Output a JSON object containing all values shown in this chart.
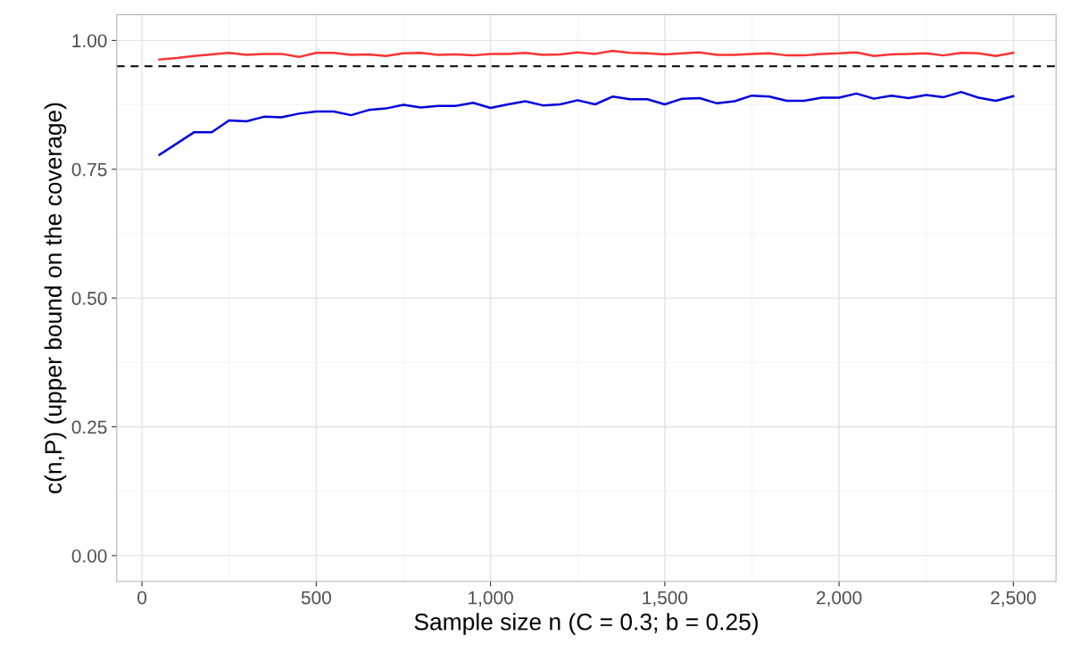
{
  "chart_data": {
    "type": "line",
    "xlabel": "Sample size n (C = 0.3; b = 0.25)",
    "ylabel": "c(n,P) (upper bound on the coverage)",
    "x": [
      50,
      100,
      150,
      200,
      250,
      300,
      350,
      400,
      450,
      500,
      550,
      600,
      650,
      700,
      750,
      800,
      850,
      900,
      950,
      1000,
      1050,
      1100,
      1150,
      1200,
      1250,
      1300,
      1350,
      1400,
      1450,
      1500,
      1550,
      1600,
      1650,
      1700,
      1750,
      1800,
      1850,
      1900,
      1950,
      2000,
      2050,
      2100,
      2150,
      2200,
      2250,
      2300,
      2350,
      2400,
      2450,
      2500
    ],
    "series": [
      {
        "color": "#ff3333",
        "values": [
          0.963,
          0.966,
          0.97,
          0.973,
          0.976,
          0.972,
          0.974,
          0.974,
          0.968,
          0.976,
          0.976,
          0.972,
          0.973,
          0.97,
          0.975,
          0.976,
          0.972,
          0.973,
          0.971,
          0.974,
          0.974,
          0.976,
          0.972,
          0.973,
          0.977,
          0.974,
          0.98,
          0.976,
          0.975,
          0.973,
          0.975,
          0.977,
          0.972,
          0.972,
          0.974,
          0.975,
          0.971,
          0.971,
          0.974,
          0.975,
          0.977,
          0.97,
          0.973,
          0.974,
          0.975,
          0.971,
          0.976,
          0.975,
          0.97,
          0.976
        ]
      },
      {
        "color": "#0000dd",
        "values": [
          0.778,
          0.8,
          0.822,
          0.822,
          0.845,
          0.843,
          0.852,
          0.851,
          0.858,
          0.862,
          0.862,
          0.855,
          0.865,
          0.868,
          0.875,
          0.87,
          0.873,
          0.873,
          0.879,
          0.869,
          0.876,
          0.882,
          0.874,
          0.876,
          0.884,
          0.876,
          0.891,
          0.886,
          0.886,
          0.876,
          0.887,
          0.888,
          0.878,
          0.882,
          0.893,
          0.891,
          0.883,
          0.883,
          0.889,
          0.889,
          0.897,
          0.887,
          0.893,
          0.888,
          0.894,
          0.89,
          0.9,
          0.889,
          0.883,
          0.892
        ]
      }
    ],
    "xlim": [
      -72.5,
      2622.5
    ],
    "xticks": [
      0,
      {
        "value": 500,
        "label": "500"
      },
      {
        "value": 1000,
        "label": "1,000"
      },
      {
        "value": 1500,
        "label": "1,500"
      },
      {
        "value": 2000,
        "label": "2,000"
      },
      {
        "value": 2500,
        "label": "2,500"
      }
    ],
    "ylim": [
      -0.05,
      1.05
    ],
    "yticks": [
      {
        "value": 0,
        "label": "0.00"
      },
      0.25,
      {
        "value": 0.5,
        "label": "0.50"
      },
      0.75,
      {
        "value": 1,
        "label": "1.00"
      }
    ],
    "ref_lines": [
      {
        "axis": "y",
        "value": 0.95,
        "color": "#000000",
        "line_style": "dashed"
      }
    ],
    "grid": true,
    "legend": false,
    "marker": "none",
    "line_style": "solid"
  }
}
